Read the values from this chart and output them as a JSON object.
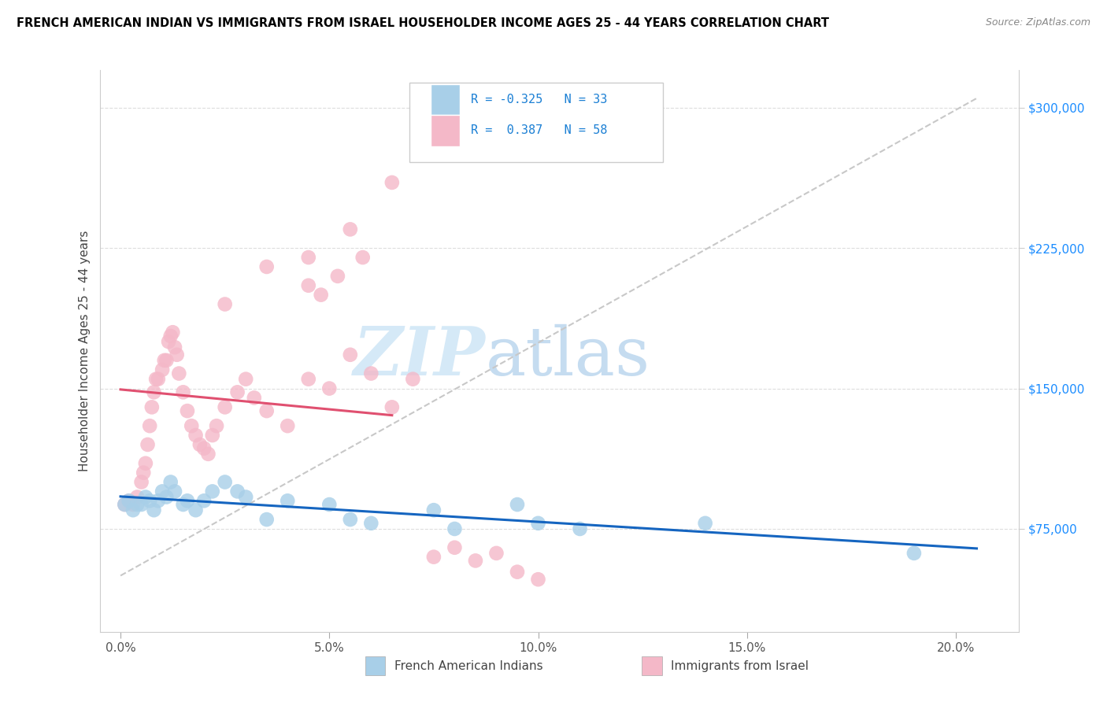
{
  "title": "FRENCH AMERICAN INDIAN VS IMMIGRANTS FROM ISRAEL HOUSEHOLDER INCOME AGES 25 - 44 YEARS CORRELATION CHART",
  "source": "Source: ZipAtlas.com",
  "ylabel": "Householder Income Ages 25 - 44 years",
  "ytick_vals": [
    75000,
    150000,
    225000,
    300000
  ],
  "ytick_labels": [
    "$75,000",
    "$150,000",
    "$225,000",
    "$300,000"
  ],
  "xtick_vals": [
    0.0,
    5.0,
    10.0,
    15.0,
    20.0
  ],
  "xtick_labels": [
    "0.0%",
    "5.0%",
    "10.0%",
    "15.0%",
    "20.0%"
  ],
  "xlim": [
    -0.5,
    21.5
  ],
  "ylim": [
    20000,
    320000
  ],
  "color_blue_scatter": "#a8cfe8",
  "color_blue_line": "#1565c0",
  "color_pink_scatter": "#f4b8c8",
  "color_pink_line": "#e05070",
  "color_gray_dash": "#c8c8c8",
  "label_blue": "French American Indians",
  "label_pink": "Immigrants from Israel",
  "legend_r1": "-0.325",
  "legend_n1": "33",
  "legend_r2": "0.387",
  "legend_n2": "58",
  "blue_x": [
    0.1,
    0.2,
    0.3,
    0.4,
    0.5,
    0.6,
    0.7,
    0.8,
    0.9,
    1.0,
    1.1,
    1.2,
    1.3,
    1.5,
    1.6,
    1.8,
    2.0,
    2.2,
    2.5,
    2.8,
    3.0,
    3.5,
    4.0,
    5.0,
    5.5,
    6.0,
    7.5,
    8.0,
    9.5,
    10.0,
    11.0,
    14.0,
    19.0
  ],
  "blue_y": [
    88000,
    90000,
    85000,
    88000,
    88000,
    92000,
    90000,
    85000,
    90000,
    95000,
    92000,
    100000,
    95000,
    88000,
    90000,
    85000,
    90000,
    95000,
    100000,
    95000,
    92000,
    80000,
    90000,
    88000,
    80000,
    78000,
    85000,
    75000,
    88000,
    78000,
    75000,
    78000,
    62000
  ],
  "pink_x": [
    0.1,
    0.2,
    0.3,
    0.4,
    0.5,
    0.55,
    0.6,
    0.65,
    0.7,
    0.75,
    0.8,
    0.85,
    0.9,
    1.0,
    1.05,
    1.1,
    1.15,
    1.2,
    1.25,
    1.3,
    1.35,
    1.4,
    1.5,
    1.6,
    1.7,
    1.8,
    1.9,
    2.0,
    2.1,
    2.2,
    2.3,
    2.5,
    2.8,
    3.0,
    3.2,
    3.5,
    4.0,
    4.5,
    5.0,
    5.5,
    6.0,
    6.5,
    7.0,
    7.5,
    8.0,
    8.5,
    9.0,
    9.5,
    10.0,
    2.5,
    3.5,
    4.5,
    5.5,
    6.5,
    4.5,
    4.8,
    5.2,
    5.8
  ],
  "pink_y": [
    88000,
    90000,
    88000,
    92000,
    100000,
    105000,
    110000,
    120000,
    130000,
    140000,
    148000,
    155000,
    155000,
    160000,
    165000,
    165000,
    175000,
    178000,
    180000,
    172000,
    168000,
    158000,
    148000,
    138000,
    130000,
    125000,
    120000,
    118000,
    115000,
    125000,
    130000,
    140000,
    148000,
    155000,
    145000,
    138000,
    130000,
    155000,
    150000,
    168000,
    158000,
    140000,
    155000,
    60000,
    65000,
    58000,
    62000,
    52000,
    48000,
    195000,
    215000,
    220000,
    235000,
    260000,
    205000,
    200000,
    210000,
    220000
  ]
}
